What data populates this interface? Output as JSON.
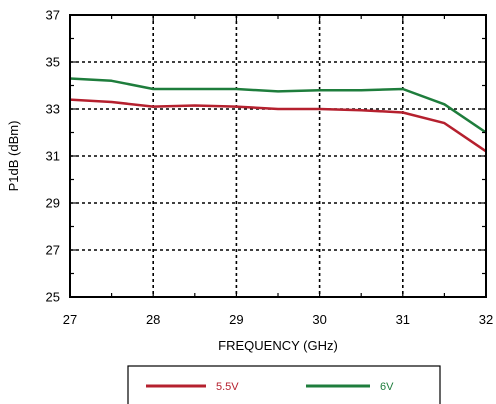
{
  "chart_data": {
    "type": "line",
    "title": "",
    "xlabel": "FREQUENCY (GHz)",
    "ylabel": "P1dB (dBm)",
    "xlim": [
      27,
      32
    ],
    "ylim": [
      25,
      37
    ],
    "xticks": [
      27,
      28,
      29,
      30,
      31,
      32
    ],
    "yticks": [
      25,
      27,
      29,
      31,
      33,
      35,
      37
    ],
    "grid": true,
    "legend_position": "bottom",
    "series": [
      {
        "name": "5.5V",
        "color": "#b5202e",
        "x": [
          27,
          27.5,
          28,
          28.5,
          29,
          29.5,
          30,
          30.5,
          31,
          31.5,
          32
        ],
        "y": [
          33.4,
          33.3,
          33.1,
          33.15,
          33.1,
          33.0,
          33.0,
          32.95,
          32.85,
          32.4,
          31.2
        ]
      },
      {
        "name": "6V",
        "color": "#1e7d3c",
        "x": [
          27,
          27.5,
          28,
          28.5,
          29,
          29.5,
          30,
          30.5,
          31,
          31.5,
          32
        ],
        "y": [
          34.3,
          34.2,
          33.85,
          33.85,
          33.85,
          33.75,
          33.8,
          33.8,
          33.85,
          33.2,
          32.0
        ]
      }
    ]
  }
}
